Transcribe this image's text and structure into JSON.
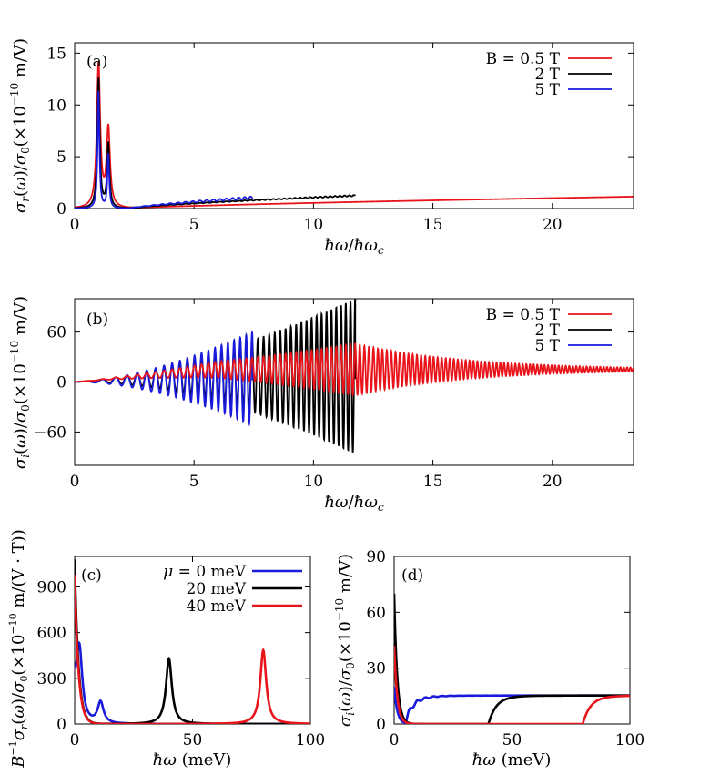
{
  "chart_data": [
    {
      "id": "a",
      "type": "line",
      "panel_label": "(a)",
      "xlabel": "ħω/ħω_c",
      "ylabel": "σ_r(ω)/σ_0(×10^-10 m/V)",
      "xlim": [
        0,
        23.4
      ],
      "ylim": [
        0,
        16
      ],
      "x_ticks": [
        0,
        5,
        10,
        15,
        20
      ],
      "y_ticks": [
        0,
        5,
        10,
        15
      ],
      "x_tick_labels": [
        "0",
        "5",
        "10",
        "15",
        "20"
      ],
      "y_tick_labels": [
        "0",
        "5",
        "10",
        "15"
      ],
      "legend_position": "top-right",
      "series": [
        {
          "name": "B = 0.5 T",
          "color": "#e8141a",
          "x_end": 23.4,
          "peaks": [
            [
              1.0,
              13.9
            ],
            [
              1.41,
              7.6
            ]
          ],
          "tail_end": 1.15,
          "width": 0.085,
          "ripple": 0.0
        },
        {
          "name": "2 T",
          "color": "#000000",
          "x_end": 11.75,
          "peaks": [
            [
              1.0,
              12.5
            ],
            [
              1.41,
              6.2
            ]
          ],
          "tail_end": 1.25,
          "width": 0.06,
          "ripple": 0.05
        },
        {
          "name": "5 T",
          "color": "#1a1adc",
          "x_end": 7.45,
          "peaks": [
            [
              1.0,
              11.3
            ],
            [
              1.41,
              5.2
            ]
          ],
          "tail_end": 1.05,
          "width": 0.045,
          "ripple": 0.12
        }
      ]
    },
    {
      "id": "b",
      "type": "line",
      "panel_label": "(b)",
      "xlabel": "ħω/ħω_c",
      "ylabel": "σ_i(ω)/σ_0(×10^-10 m/V)",
      "xlim": [
        0,
        23.4
      ],
      "ylim": [
        -100,
        100
      ],
      "x_ticks": [
        0,
        5,
        10,
        15,
        20
      ],
      "y_ticks": [
        -60,
        0,
        60
      ],
      "x_tick_labels": [
        "0",
        "5",
        "10",
        "15",
        "20"
      ],
      "y_tick_labels": [
        "−60",
        "0",
        "60"
      ],
      "legend_position": "top-right",
      "series": [
        {
          "name": "B = 0.5 T",
          "color": "#e8141a",
          "x_end": 23.4,
          "max_amp": 31,
          "peak_x": 11.75,
          "offset": 15
        },
        {
          "name": "2 T",
          "color": "#000000",
          "x_end": 11.75,
          "max_amp": 93,
          "peak_x": 11.75,
          "offset": 7
        },
        {
          "name": "5 T",
          "color": "#1a1adc",
          "x_end": 7.45,
          "max_amp": 56,
          "peak_x": 7.45,
          "offset": 4
        }
      ]
    },
    {
      "id": "c",
      "type": "line",
      "panel_label": "(c)",
      "xlabel": "ħω (meV)",
      "ylabel": "B^-1σ_r(ω)/σ_0(×10^-10 m/(V · T))",
      "xlim": [
        0,
        100
      ],
      "ylim": [
        0,
        1100
      ],
      "x_ticks": [
        0,
        50,
        100
      ],
      "y_ticks": [
        0,
        300,
        600,
        900
      ],
      "x_tick_labels": [
        "0",
        "50",
        "100"
      ],
      "y_tick_labels": [
        "0",
        "300",
        "600",
        "900"
      ],
      "legend_position": "top-right",
      "series": [
        {
          "name": "μ = 0 meV",
          "color": "#1a1adc",
          "drude": 200,
          "peaks": [
            [
              2.0,
              470,
              1.5
            ],
            [
              11.0,
              140,
              1.5
            ]
          ]
        },
        {
          "name": "20 meV",
          "color": "#000000",
          "drude": 1080,
          "peaks": [
            [
              40.0,
              430,
              1.5
            ]
          ]
        },
        {
          "name": "40 meV",
          "color": "#e8141a",
          "drude": 980,
          "peaks": [
            [
              80.0,
              485,
              1.5
            ]
          ]
        }
      ]
    },
    {
      "id": "d",
      "type": "line",
      "panel_label": "(d)",
      "xlabel": "ħω (meV)",
      "ylabel": "σ_i(ω)/σ_0(×10^-10 m/V)",
      "xlim": [
        0,
        100
      ],
      "ylim": [
        0,
        90
      ],
      "x_ticks": [
        0,
        50,
        100
      ],
      "y_ticks": [
        0,
        30,
        60,
        90
      ],
      "x_tick_labels": [
        "0",
        "50",
        "100"
      ],
      "y_tick_labels": [
        "0",
        "30",
        "60",
        "90"
      ],
      "series": [
        {
          "name": "μ = 0 meV",
          "color": "#1a1adc",
          "drude": 20,
          "step_x": 4.5,
          "plateau": 15.3
        },
        {
          "name": "20 meV",
          "color": "#000000",
          "drude": 70,
          "step_x": 40,
          "plateau": 15.3
        },
        {
          "name": "40 meV",
          "color": "#e8141a",
          "drude": 42,
          "step_x": 80,
          "plateau": 15.3
        }
      ]
    }
  ]
}
